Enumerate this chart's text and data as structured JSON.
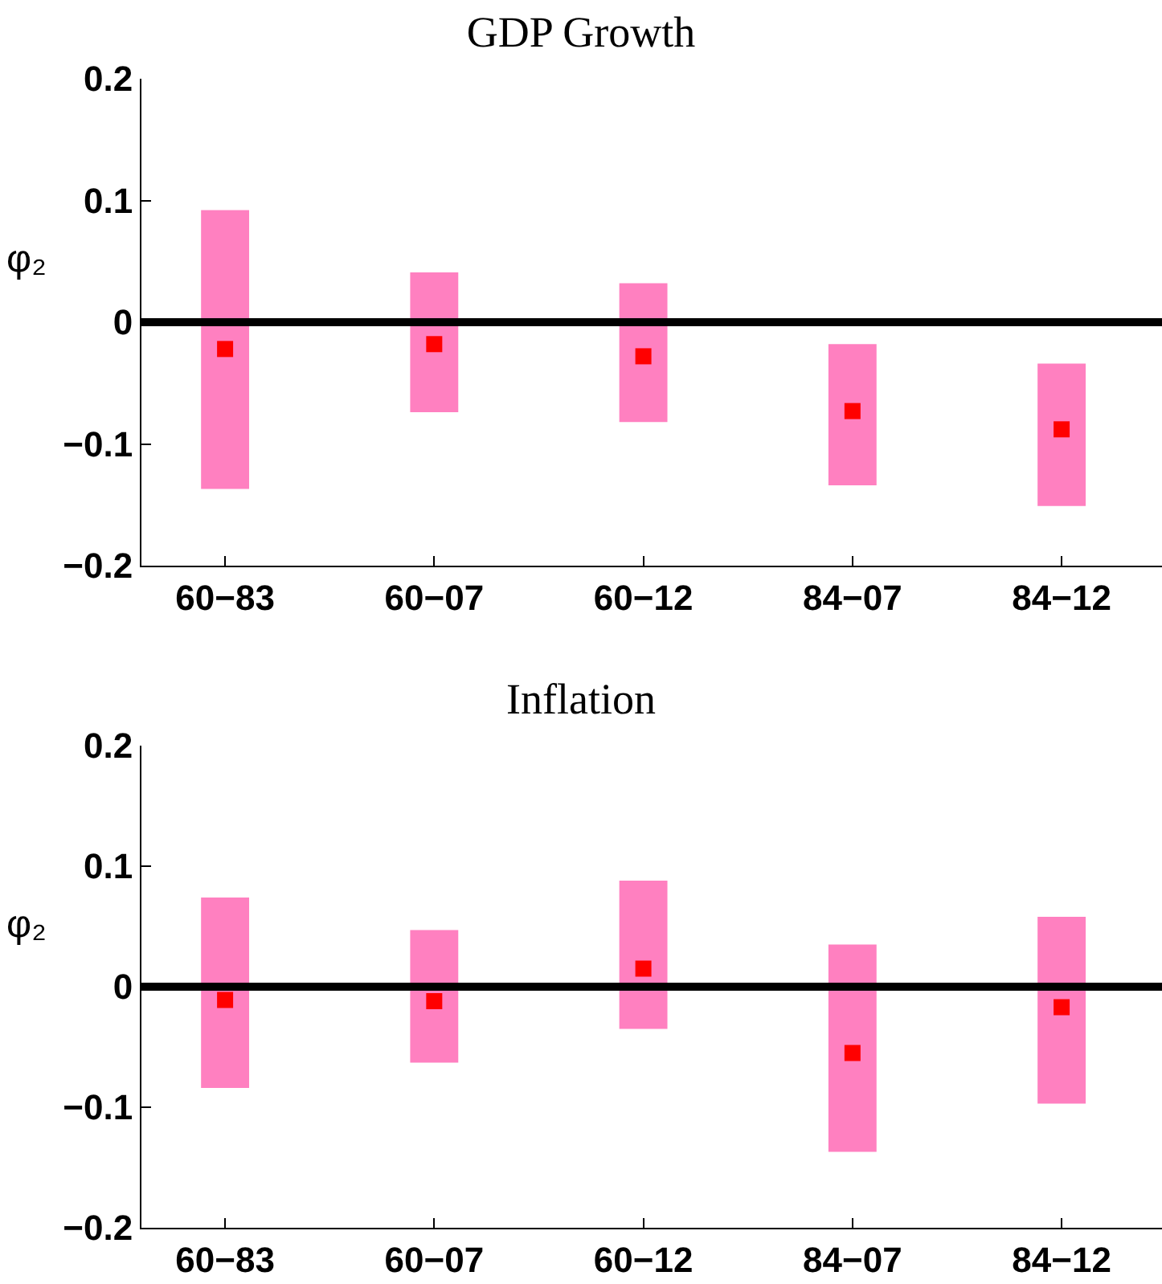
{
  "chart_data": [
    {
      "type": "bar",
      "title": "GDP Growth",
      "ylabel": "φ₂",
      "categories": [
        "60−83",
        "60−07",
        "60−12",
        "84−07",
        "84−12"
      ],
      "ylim": [
        -0.2,
        0.2
      ],
      "yticks": [
        -0.2,
        -0.1,
        0,
        0.1,
        0.2
      ],
      "series": [
        {
          "type": "bar",
          "color": "#ff80c0",
          "base": [
            -0.137,
            -0.074,
            -0.082,
            -0.134,
            -0.151
          ],
          "values": [
            0.229,
            0.115,
            0.114,
            0.116,
            0.117
          ]
        },
        {
          "type": "scatter",
          "marker": "square",
          "color": "#ff0000",
          "values": [
            -0.022,
            -0.018,
            -0.028,
            -0.073,
            -0.088
          ]
        }
      ],
      "ref_lines": [
        {
          "axis": "y",
          "value": 0,
          "color": "#000000"
        }
      ]
    },
    {
      "type": "bar",
      "title": "Inflation",
      "ylabel": "φ₂",
      "categories": [
        "60−83",
        "60−07",
        "60−12",
        "84−07",
        "84−12"
      ],
      "ylim": [
        -0.2,
        0.2
      ],
      "yticks": [
        -0.2,
        -0.1,
        0,
        0.1,
        0.2
      ],
      "series": [
        {
          "type": "bar",
          "color": "#ff80c0",
          "base": [
            -0.084,
            -0.063,
            -0.035,
            -0.137,
            -0.097
          ],
          "values": [
            0.158,
            0.11,
            0.123,
            0.172,
            0.155
          ]
        },
        {
          "type": "scatter",
          "marker": "square",
          "color": "#ff0000",
          "values": [
            -0.011,
            -0.012,
            0.015,
            -0.055,
            -0.017
          ]
        }
      ],
      "ref_lines": [
        {
          "axis": "y",
          "value": 0,
          "color": "#000000"
        }
      ]
    }
  ]
}
